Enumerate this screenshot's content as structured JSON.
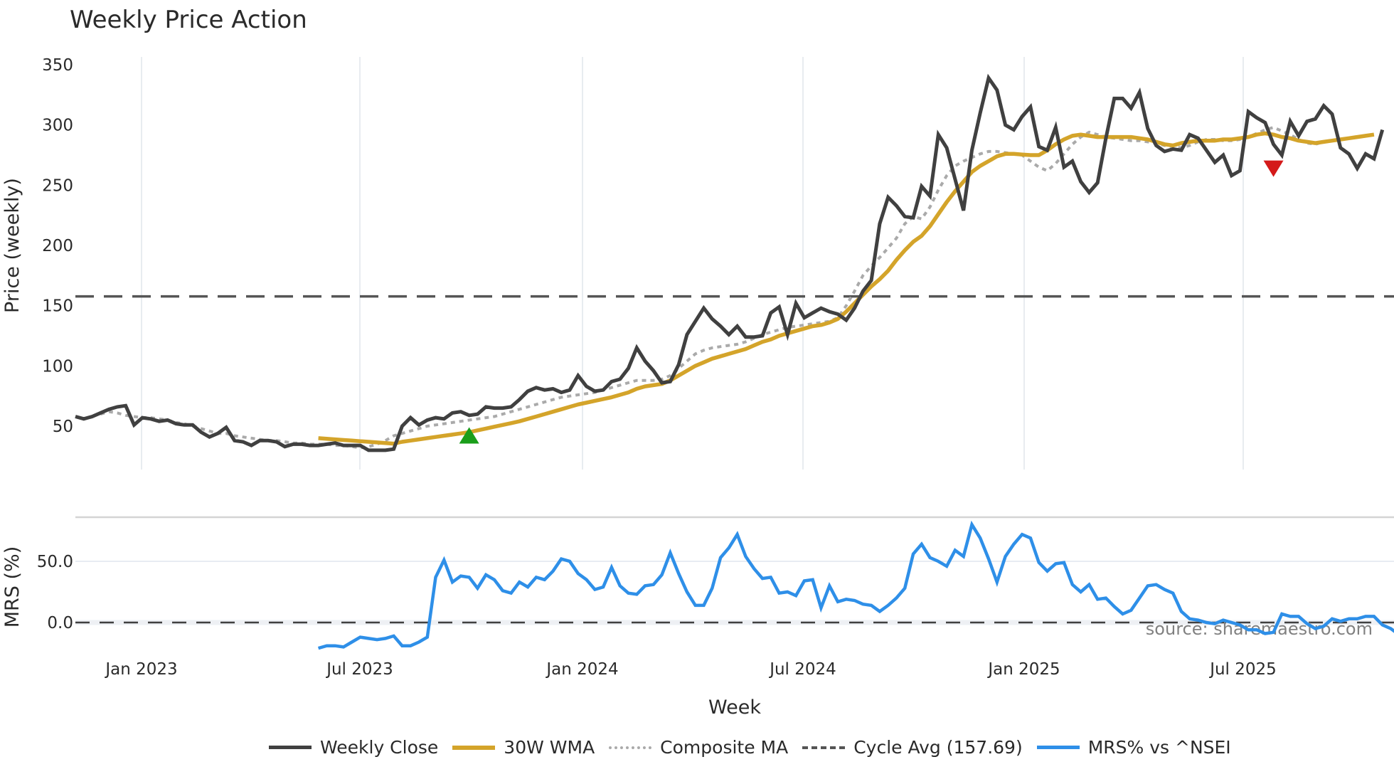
{
  "title": "Weekly Price Action",
  "source_note": "source: sharemaestro.com",
  "colors": {
    "weekly_close": "#404040",
    "wma": "#D4A42A",
    "composite": "#AAAAAA",
    "cycle": "#555555",
    "mrs": "#2E8FE8",
    "buy_marker": "#1A9E1A",
    "sell_marker": "#D41A1A",
    "grid": "#E8ECF0"
  },
  "legend": [
    {
      "key": "weekly_close",
      "label": "Weekly Close",
      "style": "solid"
    },
    {
      "key": "wma",
      "label": "30W WMA",
      "style": "solid"
    },
    {
      "key": "composite",
      "label": "Composite MA",
      "style": "dotted"
    },
    {
      "key": "cycle",
      "label": "Cycle Avg (157.69)",
      "style": "dashed"
    },
    {
      "key": "mrs",
      "label": "MRS% vs ^NSEI",
      "style": "solid"
    }
  ],
  "chart_data": [
    {
      "type": "line",
      "title": "Weekly Price Action",
      "xlabel": "Week",
      "ylabel": "Price (weekly)",
      "yticks": [
        50,
        100,
        150,
        200,
        250,
        300,
        350
      ],
      "ylim": [
        15,
        355
      ],
      "xticks": [
        "Jan 2023",
        "Jul 2023",
        "Jan 2024",
        "Jul 2024",
        "Jan 2025",
        "Jul 2025"
      ],
      "cycle_avg": 157.69,
      "x_start_week_offset": -8,
      "series": [
        {
          "name": "Weekly Close",
          "start_index": 0,
          "values": [
            58,
            56,
            58,
            61,
            64,
            66,
            67,
            51,
            57,
            56,
            54,
            55,
            52,
            51,
            51,
            45,
            41,
            44,
            49,
            38,
            37,
            34,
            38,
            38,
            37,
            33,
            35,
            35,
            34,
            34,
            35,
            36,
            34,
            34,
            34,
            30,
            30,
            30,
            31,
            50,
            57,
            51,
            55,
            57,
            56,
            61,
            62,
            59,
            60,
            66,
            65,
            65,
            66,
            72,
            79,
            82,
            80,
            81,
            78,
            80,
            92,
            83,
            79,
            80,
            87,
            89,
            98,
            115,
            104,
            96,
            86,
            87,
            101,
            126,
            137,
            148,
            139,
            133,
            126,
            133,
            124,
            124,
            125,
            144,
            149,
            126,
            152,
            140,
            144,
            148,
            145,
            143,
            138,
            148,
            162,
            171,
            218,
            240,
            233,
            224,
            223,
            249,
            241,
            292,
            281,
            255,
            229,
            279,
            310,
            339,
            329,
            300,
            296,
            307,
            315,
            282,
            279,
            298,
            265,
            270,
            253,
            244,
            252,
            289,
            322,
            322,
            314,
            327,
            297,
            283,
            278,
            280,
            279,
            292,
            289,
            279,
            269,
            275,
            258,
            262,
            311,
            306,
            302,
            284,
            275,
            303,
            291,
            303,
            305,
            316,
            309,
            281,
            276,
            264,
            276,
            272,
            296
          ]
        },
        {
          "name": "30W WMA",
          "start_index": 29,
          "values": [
            40,
            39.5,
            39,
            38.5,
            38,
            37.5,
            37,
            36.5,
            36,
            35.5,
            37,
            38,
            39,
            40,
            41,
            42,
            43,
            44,
            45,
            46.5,
            48,
            49.5,
            51,
            52.5,
            54,
            56,
            58,
            60,
            62,
            64,
            66,
            68,
            69.5,
            71,
            72.5,
            74,
            76,
            78,
            81,
            83,
            84,
            85,
            88,
            92,
            96,
            100,
            103,
            106,
            108,
            110,
            112,
            114,
            117,
            120,
            122,
            125,
            127,
            129,
            131,
            133,
            134,
            136,
            139,
            145,
            152,
            159,
            166,
            172,
            179,
            188,
            196,
            203,
            208,
            216,
            226,
            236,
            245,
            253,
            261,
            266,
            270,
            274,
            276,
            276,
            275.5,
            275,
            275,
            279,
            284,
            288,
            291,
            292,
            291,
            290,
            290,
            290,
            290,
            290,
            289,
            288,
            286,
            284,
            283,
            285,
            286,
            287,
            287,
            287,
            288,
            288,
            289,
            290,
            292,
            293,
            292,
            290,
            289,
            287,
            286,
            285,
            286,
            287,
            288,
            289,
            290,
            291,
            292
          ]
        },
        {
          "name": "Composite MA",
          "start_index": 3,
          "values": [
            60,
            62,
            61,
            59,
            58,
            57,
            57,
            56,
            55,
            53,
            52,
            50,
            48,
            46,
            44,
            44,
            42,
            41,
            40,
            39,
            38,
            38,
            37,
            36,
            36,
            35,
            35,
            35,
            34,
            34,
            33,
            32,
            33,
            35,
            38,
            42,
            44,
            46,
            48,
            50,
            51,
            52,
            53,
            54,
            55,
            56,
            57,
            58,
            60,
            62,
            64,
            66,
            68,
            70,
            72,
            74,
            75,
            76,
            77,
            78,
            80,
            82,
            84,
            86,
            88,
            88,
            88,
            89,
            92,
            98,
            104,
            110,
            113,
            115,
            116,
            117,
            118,
            120,
            123,
            126,
            128,
            130,
            132,
            133,
            134,
            135,
            136,
            137,
            140,
            150,
            162,
            175,
            183,
            190,
            198,
            206,
            218,
            224,
            222,
            232,
            246,
            258,
            266,
            270,
            273,
            276,
            278,
            278,
            277,
            276,
            275,
            270,
            265,
            262,
            268,
            276,
            284,
            290,
            294,
            292,
            290,
            289,
            288,
            287,
            287,
            286,
            285,
            283,
            282,
            281,
            283,
            286,
            288,
            288,
            287,
            287,
            288,
            290,
            293,
            296,
            298,
            295,
            292,
            288,
            285,
            284,
            286
          ]
        }
      ],
      "markers": [
        {
          "type": "buy",
          "shape": "triangle-up",
          "week_index": 47,
          "value": 42
        },
        {
          "type": "sell",
          "shape": "triangle-down",
          "week_index": 143,
          "value": 264
        }
      ]
    },
    {
      "type": "line",
      "title": "",
      "xlabel": "Week",
      "ylabel": "MRS (%)",
      "yticks": [
        0.0,
        50.0
      ],
      "ylim": [
        -28,
        86
      ],
      "zero_line": 0.0,
      "series": [
        {
          "name": "MRS% vs ^NSEI",
          "start_index": 29,
          "values": [
            -21,
            -19,
            -19,
            -20,
            -16,
            -12,
            -13,
            -14,
            -13,
            -11,
            -19,
            -19,
            -16,
            -12,
            37,
            51,
            33,
            38,
            37,
            28,
            39,
            35,
            26,
            24,
            33,
            29,
            37,
            35,
            42,
            52,
            50,
            40,
            35,
            27,
            29,
            45,
            30,
            24,
            23,
            30,
            31,
            39,
            57,
            40,
            25,
            14,
            14,
            28,
            53,
            61,
            72,
            54,
            44,
            36,
            37,
            24,
            25,
            22,
            34,
            35,
            12,
            30,
            17,
            19,
            18,
            15,
            14,
            9,
            14,
            20,
            28,
            56,
            64,
            53,
            50,
            46,
            59,
            54,
            80,
            69,
            52,
            33,
            54,
            64,
            72,
            69,
            49,
            42,
            48,
            49,
            31,
            25,
            31,
            19,
            20,
            13,
            7,
            10,
            20,
            30,
            31,
            27,
            24,
            9,
            3,
            2,
            0,
            -1,
            2,
            0,
            -2,
            -6,
            -6,
            -9,
            -8,
            7,
            5,
            5,
            -1,
            -5,
            -3,
            3,
            1,
            3,
            3,
            5,
            5,
            -2,
            -5,
            -10,
            -8,
            -8,
            -2
          ]
        }
      ]
    }
  ],
  "axes": {
    "price": {
      "ylabel": "Price (weekly)",
      "tick_labels": [
        "350",
        "300",
        "250",
        "200",
        "150",
        "100",
        "50"
      ]
    },
    "mrs": {
      "ylabel": "MRS (%)",
      "tick_labels": [
        "50.0",
        "0.0"
      ]
    },
    "x": {
      "xlabel": "Week",
      "tick_labels": [
        "Jan 2023",
        "Jul 2023",
        "Jan 2024",
        "Jul 2024",
        "Jan 2025",
        "Jul 2025"
      ]
    }
  }
}
